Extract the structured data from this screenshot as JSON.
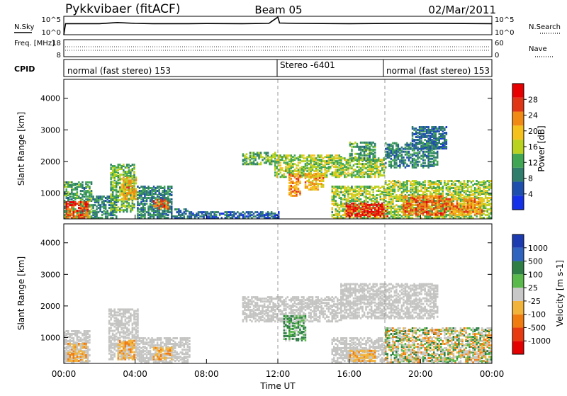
{
  "header": {
    "station": "Pykkvibaer (fitACF)",
    "beam": "Beam 05",
    "date": "02/Mar/2011"
  },
  "colors": {
    "power_scale": [
      "#1430e8",
      "#1f4fae",
      "#2f7d6a",
      "#41a653",
      "#b9d21f",
      "#f5c11d",
      "#f08a15",
      "#e03616",
      "#e80000"
    ],
    "velocity_scale": [
      "#1d3bb0",
      "#2f63c0",
      "#2e7f46",
      "#59b94a",
      "#c8c8c8",
      "#f2b33a",
      "#f07c10",
      "#e83a10",
      "#e40000"
    ],
    "ground_scatter": "#c4c4c2"
  },
  "chart_data": [
    {
      "type": "line",
      "id": "noise-panel",
      "ylabel_left": "N.Sky",
      "ylabel_right": "N.Search",
      "left_ticks": [
        "10^5",
        "10^0"
      ],
      "right_ticks": [
        "10^5",
        "10^0"
      ],
      "log_scale": true,
      "ylim": [
        1,
        100000
      ],
      "legend_right": "N.Search ......",
      "series": [
        {
          "name": "N.Sky",
          "x_hours": [
            0,
            0.1,
            2,
            3,
            4,
            5,
            6,
            7,
            8,
            10,
            11.5,
            12,
            12.1,
            13,
            16,
            20,
            24
          ],
          "values": [
            1,
            1000,
            1000,
            2000,
            1200,
            1000,
            1000,
            1000,
            1100,
            1000,
            1200,
            60000,
            1500,
            1200,
            1000,
            1300,
            1000
          ]
        }
      ]
    },
    {
      "type": "line",
      "id": "freq-panel",
      "ylabel_left": "Freq. [MHz]",
      "ylabel_right": "Nave",
      "left_ticks": [
        "18",
        "8"
      ],
      "right_ticks": [
        "60",
        "0"
      ],
      "ylim_left": [
        8,
        18
      ],
      "ylim_right": [
        0,
        60
      ],
      "legend_right": "Nave ....",
      "series": [
        {
          "name": "Freq.",
          "x_hours": [
            0,
            24
          ],
          "values": [
            11,
            11
          ]
        }
      ]
    },
    {
      "type": "table",
      "id": "cpid-panel",
      "label": "CPID",
      "segments": [
        {
          "start": 0,
          "end": 12,
          "text": "normal (fast stereo) 153"
        },
        {
          "start": 12,
          "end": 18,
          "text": "Stereo -6401"
        },
        {
          "start": 18,
          "end": 24,
          "text": "normal (fast stereo) 153"
        }
      ]
    },
    {
      "type": "heatmap",
      "id": "power-panel",
      "ylabel": "Slant Range [km]",
      "yticks": [
        1000,
        2000,
        3000,
        4000
      ],
      "ylim": [
        180,
        4600
      ],
      "xlim": [
        0,
        24
      ],
      "colorbar_label": "Power [dB]",
      "colorbar_ticks": [
        "28",
        "24",
        "20",
        "16",
        "12",
        "8",
        "4"
      ],
      "colorbar_range": [
        0,
        30
      ],
      "regions": [
        {
          "t0": 0,
          "t1": 1.6,
          "r0": 200,
          "r1": 1350,
          "v": 10
        },
        {
          "t0": 0.1,
          "t1": 1.4,
          "r0": 200,
          "r1": 700,
          "v": 26
        },
        {
          "t0": 1.6,
          "t1": 3,
          "r0": 200,
          "r1": 900,
          "v": 8
        },
        {
          "t0": 2.6,
          "t1": 4,
          "r0": 400,
          "r1": 1900,
          "v": 12
        },
        {
          "t0": 3.2,
          "t1": 4.1,
          "r0": 800,
          "r1": 1500,
          "v": 20
        },
        {
          "t0": 4.1,
          "t1": 6,
          "r0": 200,
          "r1": 1200,
          "v": 8
        },
        {
          "t0": 5,
          "t1": 5.8,
          "r0": 500,
          "r1": 800,
          "v": 24
        },
        {
          "t0": 6,
          "t1": 7,
          "r0": 200,
          "r1": 500,
          "v": 6
        },
        {
          "t0": 7,
          "t1": 12,
          "r0": 200,
          "r1": 400,
          "v": 5
        },
        {
          "t0": 10,
          "t1": 11.8,
          "r0": 1900,
          "r1": 2300,
          "v": 12
        },
        {
          "t0": 11.8,
          "t1": 15.5,
          "r0": 1500,
          "r1": 2200,
          "v": 14
        },
        {
          "t0": 12.6,
          "t1": 13.2,
          "r0": 900,
          "r1": 1600,
          "v": 22
        },
        {
          "t0": 13.5,
          "t1": 14.5,
          "r0": 1100,
          "r1": 1600,
          "v": 20
        },
        {
          "t0": 15.5,
          "t1": 18,
          "r0": 1500,
          "r1": 2100,
          "v": 14
        },
        {
          "t0": 16,
          "t1": 17.5,
          "r0": 2000,
          "r1": 2600,
          "v": 10
        },
        {
          "t0": 18,
          "t1": 21,
          "r0": 1800,
          "r1": 2600,
          "v": 8
        },
        {
          "t0": 19.5,
          "t1": 21.5,
          "r0": 2400,
          "r1": 3100,
          "v": 6
        },
        {
          "t0": 15,
          "t1": 18,
          "r0": 200,
          "r1": 1200,
          "v": 14
        },
        {
          "t0": 15.8,
          "t1": 18.2,
          "r0": 250,
          "r1": 700,
          "v": 28
        },
        {
          "t0": 18,
          "t1": 24,
          "r0": 200,
          "r1": 1400,
          "v": 14
        },
        {
          "t0": 19,
          "t1": 21.5,
          "r0": 300,
          "r1": 900,
          "v": 24
        },
        {
          "t0": 21.5,
          "t1": 23.5,
          "r0": 300,
          "r1": 800,
          "v": 22
        }
      ],
      "vertical_markers_hours": [
        12,
        18
      ]
    },
    {
      "type": "heatmap",
      "id": "velocity-panel",
      "ylabel": "Slant Range [km]",
      "yticks": [
        1000,
        2000,
        3000,
        4000
      ],
      "ylim": [
        180,
        4600
      ],
      "xlim": [
        0,
        24
      ],
      "xticks": [
        "00:00",
        "04:00",
        "08:00",
        "12:00",
        "16:00",
        "20:00",
        "00:00"
      ],
      "xlabel": "Time UT",
      "colorbar_label": "Velocity [m s-1]",
      "colorbar_ticks": [
        "1000",
        "500",
        "100",
        "25",
        "-25",
        "-100",
        "-500",
        "-1000"
      ],
      "regions": [
        {
          "t0": 0,
          "t1": 1.5,
          "r0": 200,
          "r1": 1200,
          "c": "gs"
        },
        {
          "t0": 0.2,
          "t1": 1.3,
          "r0": 250,
          "r1": 800,
          "c": "neg"
        },
        {
          "t0": 2.5,
          "t1": 4.2,
          "r0": 300,
          "r1": 1900,
          "c": "gs"
        },
        {
          "t0": 3,
          "t1": 4,
          "r0": 300,
          "r1": 900,
          "c": "neg"
        },
        {
          "t0": 4.2,
          "t1": 7,
          "r0": 200,
          "r1": 1000,
          "c": "gs"
        },
        {
          "t0": 5,
          "t1": 6,
          "r0": 300,
          "r1": 700,
          "c": "neg"
        },
        {
          "t0": 10,
          "t1": 15.5,
          "r0": 1500,
          "r1": 2300,
          "c": "gs"
        },
        {
          "t0": 12.3,
          "t1": 13.5,
          "r0": 900,
          "r1": 1700,
          "c": "pos"
        },
        {
          "t0": 15.5,
          "t1": 21,
          "r0": 1600,
          "r1": 2700,
          "c": "gs"
        },
        {
          "t0": 15,
          "t1": 18,
          "r0": 200,
          "r1": 1000,
          "c": "gs"
        },
        {
          "t0": 16,
          "t1": 17.5,
          "r0": 250,
          "r1": 600,
          "c": "neg"
        },
        {
          "t0": 18,
          "t1": 24,
          "r0": 200,
          "r1": 1300,
          "c": "mix"
        }
      ],
      "vertical_markers_hours": [
        12,
        18
      ]
    }
  ]
}
